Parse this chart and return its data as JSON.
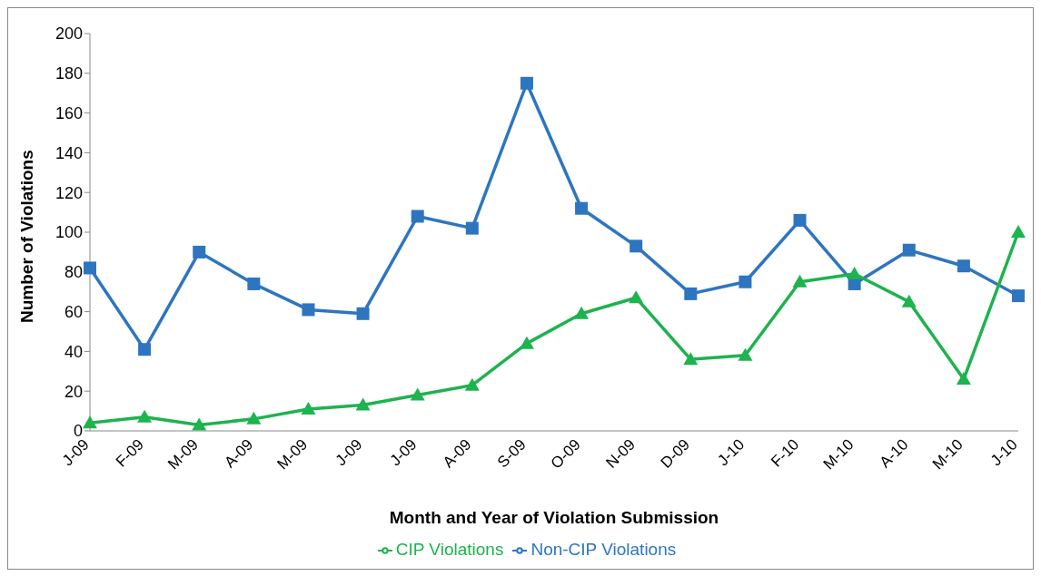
{
  "chart_data": {
    "type": "line",
    "xlabel": "Month and Year of Violation Submission",
    "ylabel": "Number of Violations",
    "categories": [
      "J-09",
      "F-09",
      "M-09",
      "A-09",
      "M-09",
      "J-09",
      "J-09",
      "A-09",
      "S-09",
      "O-09",
      "N-09",
      "D-09",
      "J-10",
      "F-10",
      "M-10",
      "A-10",
      "M-10",
      "J-10"
    ],
    "series": [
      {
        "name": "Non-CIP Violations",
        "color": "#2e75c0",
        "marker": "square",
        "values": [
          82,
          41,
          90,
          74,
          61,
          59,
          108,
          102,
          175,
          112,
          93,
          69,
          75,
          106,
          74,
          91,
          83,
          68
        ]
      },
      {
        "name": "CIP Violations",
        "color": "#1db34e",
        "marker": "triangle",
        "values": [
          4,
          7,
          3,
          6,
          11,
          13,
          18,
          23,
          44,
          59,
          67,
          36,
          38,
          75,
          79,
          65,
          26,
          100
        ]
      }
    ],
    "ylim": [
      0,
      200
    ],
    "yticks": [
      0,
      20,
      40,
      60,
      80,
      100,
      120,
      140,
      160,
      180,
      200
    ],
    "grid": false,
    "legend": "bottom"
  }
}
